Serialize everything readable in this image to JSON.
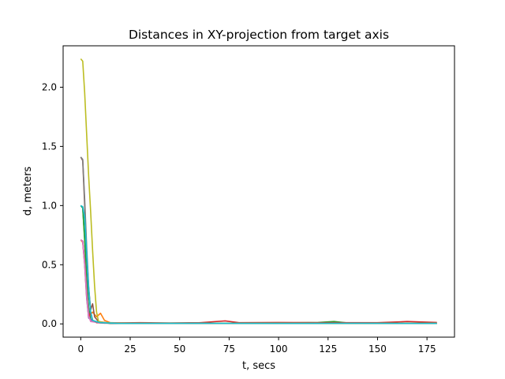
{
  "chart_data": {
    "type": "line",
    "title": "Distances in XY-projection from target axis",
    "xlabel": "t, secs",
    "ylabel": "d, meters",
    "xlim": [
      -8.9,
      188.9
    ],
    "ylim": [
      -0.112,
      2.35
    ],
    "xticks": [
      0,
      25,
      50,
      75,
      100,
      125,
      150,
      175
    ],
    "yticks": [
      0.0,
      0.5,
      1.0,
      1.5,
      2.0
    ],
    "xtick_labels": [
      "0",
      "25",
      "50",
      "75",
      "100",
      "125",
      "150",
      "175"
    ],
    "ytick_labels": [
      "0.0",
      "0.5",
      "1.0",
      "1.5",
      "2.0"
    ],
    "grid": false,
    "legend": "none",
    "series": [
      {
        "color": "#1f77b4",
        "values": [
          [
            0,
            1.0
          ],
          [
            1,
            0.98
          ],
          [
            2,
            0.72
          ],
          [
            3,
            0.4
          ],
          [
            4,
            0.14
          ],
          [
            5,
            0.04
          ],
          [
            7,
            0.02
          ],
          [
            10,
            0.01
          ],
          [
            15,
            0.004
          ],
          [
            30,
            0.006
          ],
          [
            60,
            0.004
          ],
          [
            90,
            0.006
          ],
          [
            120,
            0.004
          ],
          [
            150,
            0.006
          ],
          [
            180,
            0.004
          ]
        ]
      },
      {
        "color": "#ff7f0e",
        "values": [
          [
            0,
            0.71
          ],
          [
            1,
            0.69
          ],
          [
            2,
            0.5
          ],
          [
            3,
            0.22
          ],
          [
            4,
            0.06
          ],
          [
            6,
            0.1
          ],
          [
            8,
            0.06
          ],
          [
            10,
            0.09
          ],
          [
            12,
            0.03
          ],
          [
            15,
            0.01
          ],
          [
            30,
            0.005
          ],
          [
            60,
            0.006
          ],
          [
            90,
            0.004
          ],
          [
            120,
            0.006
          ],
          [
            150,
            0.005
          ],
          [
            180,
            0.004
          ]
        ]
      },
      {
        "color": "#2ca02c",
        "values": [
          [
            0,
            1.0
          ],
          [
            1,
            0.98
          ],
          [
            2,
            0.7
          ],
          [
            3,
            0.35
          ],
          [
            4,
            0.12
          ],
          [
            5,
            0.03
          ],
          [
            8,
            0.015
          ],
          [
            15,
            0.005
          ],
          [
            30,
            0.006
          ],
          [
            60,
            0.005
          ],
          [
            90,
            0.006
          ],
          [
            120,
            0.012
          ],
          [
            128,
            0.02
          ],
          [
            135,
            0.008
          ],
          [
            150,
            0.005
          ],
          [
            180,
            0.006
          ]
        ]
      },
      {
        "color": "#d62728",
        "values": [
          [
            0,
            0.71
          ],
          [
            1,
            0.7
          ],
          [
            2,
            0.52
          ],
          [
            3,
            0.25
          ],
          [
            4,
            0.05
          ],
          [
            5,
            0.1
          ],
          [
            6,
            0.03
          ],
          [
            8,
            0.01
          ],
          [
            12,
            0.006
          ],
          [
            30,
            0.01
          ],
          [
            45,
            0.008
          ],
          [
            60,
            0.01
          ],
          [
            73,
            0.025
          ],
          [
            80,
            0.01
          ],
          [
            100,
            0.012
          ],
          [
            120,
            0.01
          ],
          [
            150,
            0.01
          ],
          [
            165,
            0.02
          ],
          [
            180,
            0.012
          ]
        ]
      },
      {
        "color": "#9467bd",
        "values": [
          [
            0,
            0.71
          ],
          [
            1,
            0.7
          ],
          [
            2,
            0.5
          ],
          [
            3,
            0.22
          ],
          [
            4,
            0.05
          ],
          [
            6,
            0.02
          ],
          [
            10,
            0.01
          ],
          [
            20,
            0.005
          ],
          [
            60,
            0.006
          ],
          [
            120,
            0.005
          ],
          [
            180,
            0.005
          ]
        ]
      },
      {
        "color": "#8c564b",
        "values": [
          [
            0,
            1.41
          ],
          [
            1,
            1.38
          ],
          [
            2,
            1.0
          ],
          [
            3,
            0.6
          ],
          [
            4,
            0.3
          ],
          [
            5,
            0.12
          ],
          [
            6,
            0.17
          ],
          [
            7,
            0.06
          ],
          [
            9,
            0.02
          ],
          [
            15,
            0.005
          ],
          [
            60,
            0.006
          ],
          [
            120,
            0.005
          ],
          [
            180,
            0.004
          ]
        ]
      },
      {
        "color": "#e377c2",
        "values": [
          [
            0,
            0.71
          ],
          [
            1,
            0.7
          ],
          [
            2,
            0.52
          ],
          [
            3,
            0.26
          ],
          [
            4,
            0.07
          ],
          [
            5,
            0.02
          ],
          [
            10,
            0.008
          ],
          [
            30,
            0.005
          ],
          [
            90,
            0.006
          ],
          [
            180,
            0.005
          ]
        ]
      },
      {
        "color": "#7f7f7f",
        "values": [
          [
            0,
            1.41
          ],
          [
            1,
            1.39
          ],
          [
            2,
            1.05
          ],
          [
            3,
            0.65
          ],
          [
            4,
            0.32
          ],
          [
            5,
            0.1
          ],
          [
            6,
            0.03
          ],
          [
            8,
            0.015
          ],
          [
            15,
            0.005
          ],
          [
            60,
            0.006
          ],
          [
            120,
            0.005
          ],
          [
            180,
            0.005
          ]
        ]
      },
      {
        "color": "#bcbd22",
        "values": [
          [
            0,
            2.24
          ],
          [
            1,
            2.22
          ],
          [
            2,
            1.95
          ],
          [
            3,
            1.6
          ],
          [
            4,
            1.25
          ],
          [
            5,
            0.95
          ],
          [
            6,
            0.62
          ],
          [
            7,
            0.32
          ],
          [
            8,
            0.1
          ],
          [
            9,
            0.02
          ],
          [
            12,
            0.01
          ],
          [
            20,
            0.005
          ],
          [
            60,
            0.006
          ],
          [
            120,
            0.005
          ],
          [
            180,
            0.005
          ]
        ]
      },
      {
        "color": "#17becf",
        "values": [
          [
            0,
            1.0
          ],
          [
            1,
            0.99
          ],
          [
            2,
            0.9
          ],
          [
            3,
            0.6
          ],
          [
            4,
            0.3
          ],
          [
            5,
            0.1
          ],
          [
            6,
            0.03
          ],
          [
            10,
            0.01
          ],
          [
            20,
            0.004
          ],
          [
            60,
            0.005
          ],
          [
            100,
            0.004
          ],
          [
            140,
            0.005
          ],
          [
            180,
            0.004
          ]
        ]
      }
    ]
  }
}
